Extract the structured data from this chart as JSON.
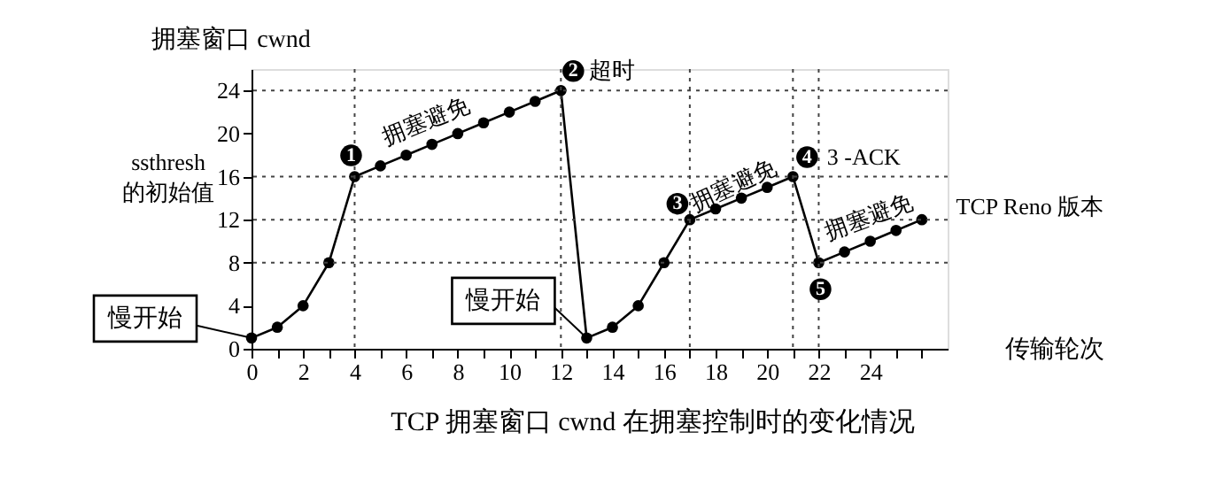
{
  "chart_data": {
    "type": "line",
    "title": "TCP 拥塞窗口 cwnd 在拥塞控制时的变化情况",
    "xlabel": "传输轮次",
    "ylabel": "拥塞窗口 cwnd",
    "x": [
      0,
      1,
      2,
      3,
      4,
      5,
      6,
      7,
      8,
      9,
      10,
      11,
      12,
      13,
      14,
      15,
      16,
      17,
      18,
      19,
      20,
      21,
      22,
      23,
      24,
      25,
      26
    ],
    "series": [
      {
        "color": "#000000",
        "values": [
          1,
          2,
          4,
          8,
          16,
          17,
          18,
          19,
          20,
          21,
          22,
          23,
          24,
          1,
          2,
          4,
          8,
          12,
          13,
          14,
          15,
          16,
          8,
          9,
          10,
          11,
          12
        ]
      }
    ],
    "xlim": [
      0,
      27
    ],
    "ylim": [
      0,
      26
    ],
    "xticks": [
      0,
      {
        "value": 1,
        "label": null
      },
      2,
      {
        "value": 3,
        "label": null
      },
      4,
      {
        "value": 5,
        "label": null
      },
      6,
      {
        "value": 7,
        "label": null
      },
      8,
      {
        "value": 9,
        "label": null
      },
      10,
      {
        "value": 11,
        "label": null
      },
      12,
      {
        "value": 13,
        "label": null
      },
      14,
      {
        "value": 15,
        "label": null
      },
      16,
      {
        "value": 17,
        "label": null
      },
      18,
      {
        "value": 19,
        "label": null
      },
      20,
      {
        "value": 21,
        "label": null
      },
      22,
      {
        "value": 23,
        "label": null
      },
      24,
      {
        "value": 25,
        "label": null
      },
      {
        "value": 26,
        "label": null
      }
    ],
    "yticks": [
      0,
      4,
      8,
      12,
      16,
      20,
      24
    ],
    "ref_lines": [
      {
        "axis": "y",
        "value": 24,
        "line_style": "dotted"
      },
      {
        "axis": "y",
        "value": 16,
        "line_style": "dotted"
      },
      {
        "axis": "y",
        "value": 12,
        "line_style": "dotted"
      },
      {
        "axis": "y",
        "value": 8,
        "line_style": "dotted"
      },
      {
        "axis": "x",
        "value": 4,
        "line_style": "dotted"
      },
      {
        "axis": "x",
        "value": 12,
        "line_style": "dotted"
      },
      {
        "axis": "x",
        "value": 17,
        "line_style": "dotted"
      },
      {
        "axis": "x",
        "value": 21,
        "line_style": "dotted"
      },
      {
        "axis": "x",
        "value": 22,
        "line_style": "dotted"
      }
    ],
    "annotations": [
      {
        "text": "1",
        "x": 4,
        "y": 16
      },
      {
        "text": "2",
        "x": 12,
        "y": 24
      },
      {
        "text": "超时",
        "x": 12,
        "y": 24
      },
      {
        "text": "3",
        "x": 17,
        "y": 12
      },
      {
        "text": "4",
        "x": 21,
        "y": 16
      },
      {
        "text": "3 -ACK",
        "x": 21,
        "y": 16
      },
      {
        "text": "5",
        "x": 22,
        "y": 8
      },
      {
        "text": "TCP Reno 版本",
        "x": 26,
        "y": 12
      },
      {
        "text": "拥塞避免",
        "x": 8,
        "y": 20
      },
      {
        "text": "拥塞避免",
        "x": 19,
        "y": 14
      },
      {
        "text": "拥塞避免",
        "x": 24,
        "y": 10
      },
      {
        "text": "慢开始",
        "x": 0,
        "y": 1
      },
      {
        "text": "慢开始",
        "x": 13,
        "y": 1
      },
      {
        "text": "ssthresh 的初始值",
        "x": 0,
        "y": 16
      }
    ],
    "grid": false,
    "marker": "circle",
    "line_style": "solid"
  }
}
